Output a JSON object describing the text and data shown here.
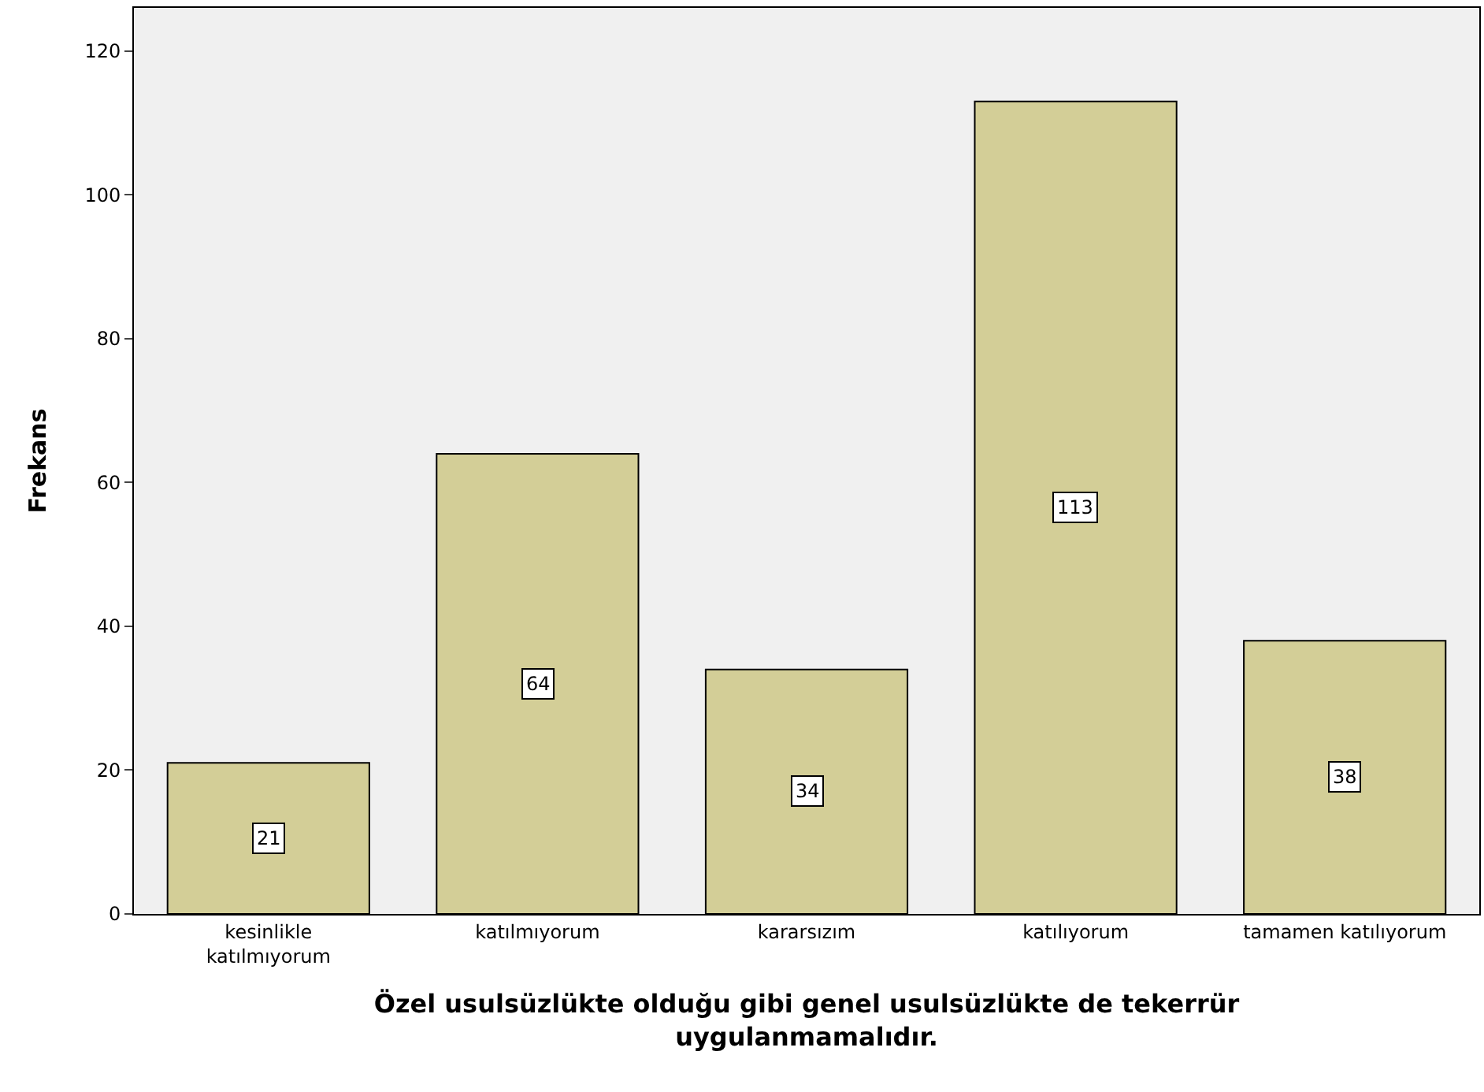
{
  "chart_data": {
    "type": "bar",
    "xlabel": "Özel usulsüzlükte olduğu gibi genel usulsüzlükte de tekerrür\nuygulanmamalıdır.",
    "ylabel": "Frekans",
    "categories": [
      "kesinlikle\nkatılmıyorum",
      "katılmıyorum",
      "kararsızım",
      "katılıyorum",
      "tamamen katılıyorum"
    ],
    "values": [
      21,
      64,
      34,
      113,
      38
    ],
    "color": "#d3ce97",
    "data_labels": true,
    "ylim": [
      0,
      126
    ],
    "yticks": [
      0,
      20,
      40,
      60,
      80,
      100,
      120
    ],
    "grid": false
  }
}
